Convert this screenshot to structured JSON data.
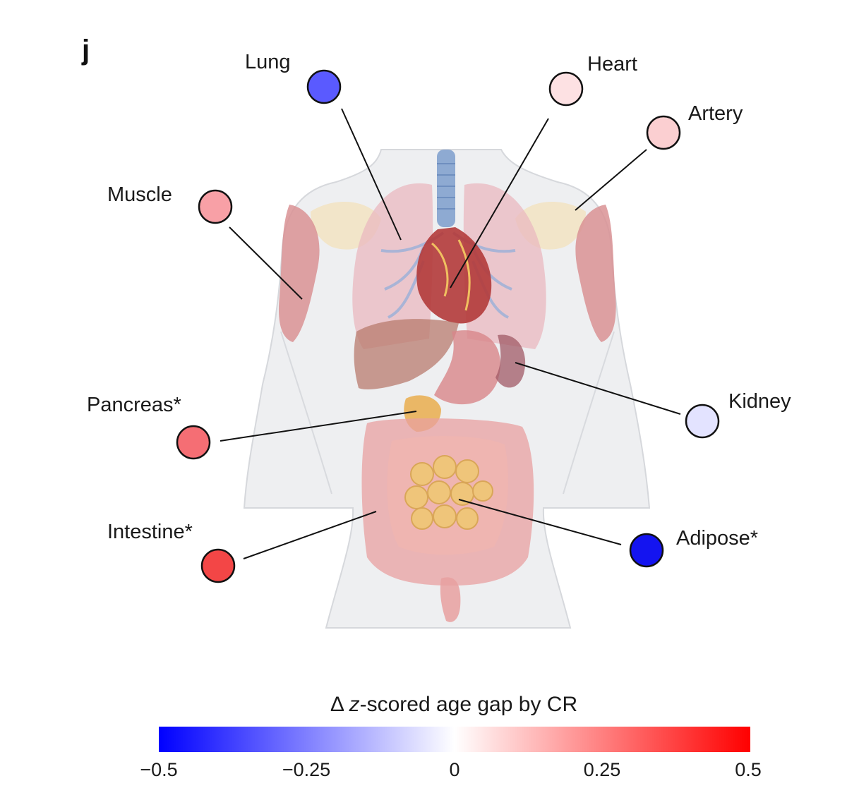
{
  "panel_label": "j",
  "organs": [
    {
      "label": "Lung",
      "value": -0.35,
      "color": "#5a5aff"
    },
    {
      "label": "Heart",
      "value": 0.06,
      "color": "#fde1e3"
    },
    {
      "label": "Artery",
      "value": 0.09,
      "color": "#fbcfd1"
    },
    {
      "label": "Muscle",
      "value": 0.2,
      "color": "#f8a0a6"
    },
    {
      "label": "Kidney",
      "value": -0.07,
      "color": "#e3e3ff"
    },
    {
      "label": "Pancreas*",
      "value": 0.3,
      "color": "#f56e74"
    },
    {
      "label": "Intestine*",
      "value": 0.38,
      "color": "#f34646"
    },
    {
      "label": "Adipose*",
      "value": -0.48,
      "color": "#1414f0"
    }
  ],
  "colorbar": {
    "title_prefix": "Δ ",
    "title_italic": "z",
    "title_suffix": "-scored age gap by CR",
    "min": -0.5,
    "max": 0.5,
    "ticks": [
      "−0.5",
      "−0.25",
      "0",
      "0.25",
      "0.5"
    ],
    "colors": {
      "low": "#0000ff",
      "mid": "#ffffff",
      "high": "#ff0000"
    }
  }
}
